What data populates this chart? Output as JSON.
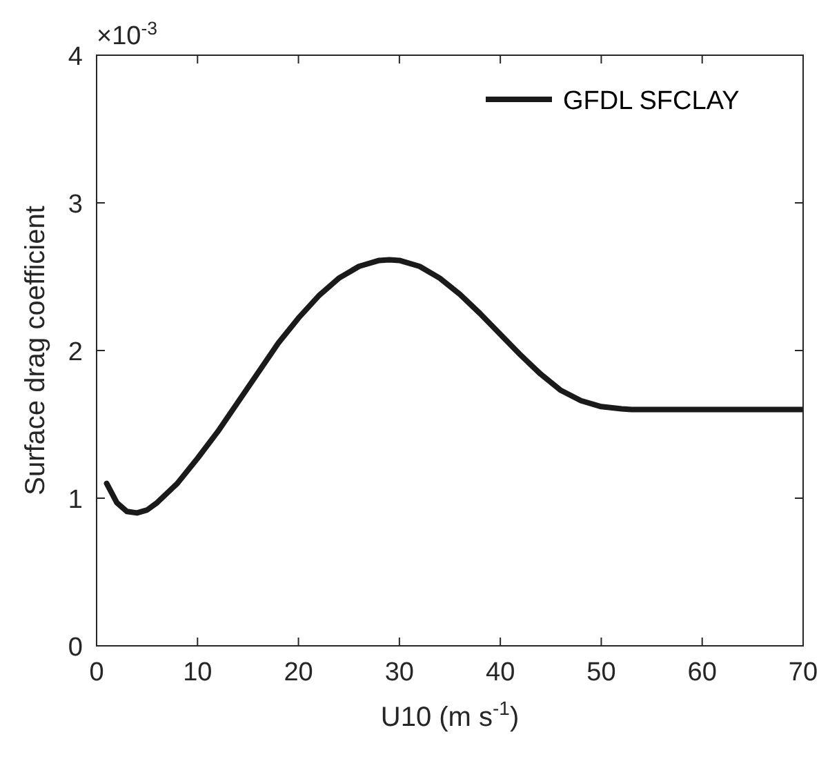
{
  "chart_data": {
    "type": "line",
    "xlabel": "U10 (m s$^{-1}$)",
    "ylabel": "Surface drag coefficient",
    "annotations": [
      "×10$^{-3}$"
    ],
    "x": [
      1,
      2,
      3,
      4,
      5,
      6,
      8,
      10,
      12,
      15,
      18,
      20,
      22,
      24,
      26,
      28,
      29,
      30,
      32,
      34,
      36,
      38,
      40,
      42,
      44,
      46,
      48,
      50,
      52,
      53,
      60,
      70
    ],
    "series": [
      {
        "name": "GFDL SFCLAY",
        "color": "#1a1a1a",
        "values": [
          1.1,
          0.97,
          0.91,
          0.9,
          0.92,
          0.97,
          1.1,
          1.27,
          1.45,
          1.75,
          2.05,
          2.22,
          2.37,
          2.49,
          2.57,
          2.61,
          2.615,
          2.61,
          2.57,
          2.49,
          2.38,
          2.25,
          2.11,
          1.97,
          1.84,
          1.73,
          1.66,
          1.62,
          1.605,
          1.6,
          1.6,
          1.6
        ]
      }
    ],
    "xlim": [
      0,
      70
    ],
    "xticks": [
      0,
      10,
      20,
      30,
      40,
      50,
      60,
      70
    ],
    "ylim": [
      0,
      4
    ],
    "yticks": [
      0,
      1,
      2,
      3,
      4
    ],
    "legend": "top right",
    "grid": false,
    "line_style": "solid",
    "marker": "none"
  }
}
